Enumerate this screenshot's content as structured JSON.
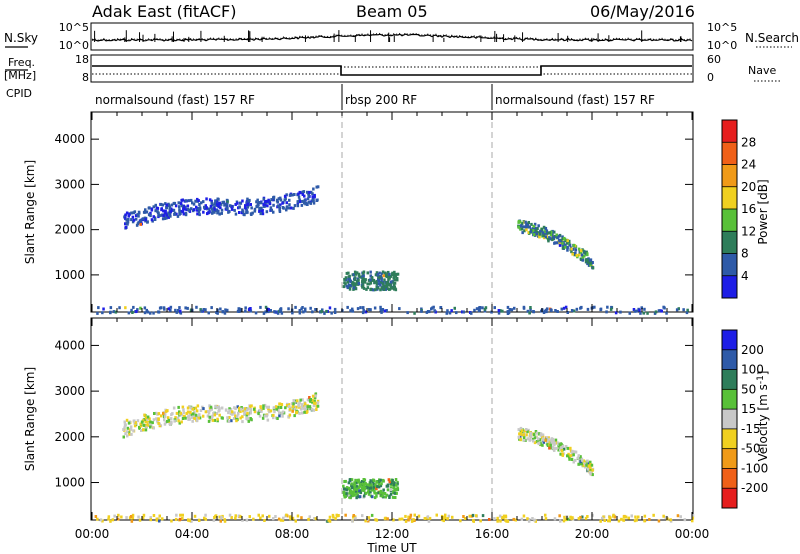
{
  "header": {
    "station": "Adak East (fitACF)",
    "beam": "Beam 05",
    "date": "06/May/2016"
  },
  "left_labels": {
    "nsky": "N.Sky",
    "freq1": "Freq.",
    "freq2": "[MHz]",
    "cpid": "CPID"
  },
  "right_labels": {
    "nsearch": "N.Search",
    "nave": "Nave"
  },
  "noise_panel": {
    "left_ticks": [
      "10^5",
      "10^0"
    ],
    "right_ticks": [
      "10^5",
      "10^0"
    ]
  },
  "freq_panel": {
    "left_ticks": [
      "18",
      "8"
    ],
    "right_ticks": [
      "60",
      "0"
    ]
  },
  "cpid_segments": [
    {
      "label": "normalsound (fast) 157 RF",
      "start_h": 0,
      "end_h": 10
    },
    {
      "label": "rbsp 200 RF",
      "start_h": 10,
      "end_h": 16
    },
    {
      "label": "normalsound (fast) 157 RF",
      "start_h": 16,
      "end_h": 24
    }
  ],
  "colors": {
    "power": [
      "#1e1ee6",
      "#2e5aa8",
      "#2e7d5a",
      "#58c038",
      "#f0d020",
      "#f09a18",
      "#f06018",
      "#e61e1e"
    ],
    "velocity": [
      "#e61e1e",
      "#f06018",
      "#f09a18",
      "#f0d020",
      "#c8c8c8",
      "#58c038",
      "#2e7d5a",
      "#2e5aa8",
      "#1e1ee6"
    ]
  },
  "chart_data": [
    {
      "type": "heatmap",
      "title": "Power",
      "xlabel": "Time UT",
      "ylabel": "Slant Range [km]",
      "xlim": [
        0,
        24
      ],
      "ylim": [
        180,
        4600
      ],
      "yticks": [
        "1000",
        "2000",
        "3000",
        "4000"
      ],
      "colorbar": {
        "label": "Power [dB]",
        "ticks": [
          "4",
          "8",
          "12",
          "16",
          "20",
          "24",
          "28"
        ],
        "range": [
          0,
          32
        ]
      },
      "scatter_regions": [
        {
          "t_range": [
            1.2,
            9.0
          ],
          "r_range": [
            1900,
            3000
          ],
          "value_dB": 5
        },
        {
          "t_range": [
            10.0,
            12.2
          ],
          "r_range": [
            700,
            1100
          ],
          "value_dB": 9
        },
        {
          "t_range": [
            17.0,
            20.0
          ],
          "r_range": [
            1250,
            2200
          ],
          "value_dB": 8
        },
        {
          "t_range": [
            0,
            24
          ],
          "r_range": [
            180,
            320
          ],
          "value_dB": 6
        }
      ]
    },
    {
      "type": "heatmap",
      "title": "Velocity",
      "xlabel": "Time UT",
      "ylabel": "Slant Range [km]",
      "xlim": [
        0,
        24
      ],
      "ylim": [
        180,
        4600
      ],
      "yticks": [
        "1000",
        "2000",
        "3000",
        "4000"
      ],
      "colorbar": {
        "label": "Velocity [m s-1]",
        "ticks": [
          "-200",
          "-100",
          "-50",
          "-15",
          "15",
          "50",
          "100",
          "200"
        ],
        "range": [
          -250,
          250
        ]
      },
      "scatter_regions": [
        {
          "t_range": [
            1.2,
            9.0
          ],
          "r_range": [
            1900,
            3000
          ],
          "value_ms": 0
        },
        {
          "t_range": [
            10.0,
            12.2
          ],
          "r_range": [
            700,
            1100
          ],
          "value_ms": 40
        },
        {
          "t_range": [
            17.0,
            20.0
          ],
          "r_range": [
            1250,
            2200
          ],
          "value_ms": 0
        },
        {
          "t_range": [
            0,
            24
          ],
          "r_range": [
            180,
            320
          ],
          "value_ms": -30
        }
      ]
    }
  ],
  "x_axis": {
    "ticks": [
      "00:00",
      "04:00",
      "08:00",
      "12:00",
      "16:00",
      "20:00",
      "00:00"
    ],
    "label": "Time UT"
  }
}
